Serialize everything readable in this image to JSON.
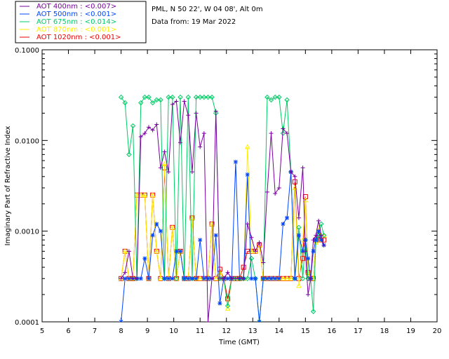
{
  "header": {
    "site": "PML, N 50 22', W 04 08', Alt 0m",
    "date": "Data from: 19 Mar 2022"
  },
  "chart_data": {
    "type": "line",
    "xlabel": "Time (GMT)",
    "ylabel": "Imaginary Part of Refractive Index",
    "xlim": [
      5,
      20
    ],
    "ylim": [
      0.0001,
      0.1
    ],
    "yscale": "log",
    "x_ticks": [
      "5",
      "6",
      "7",
      "8",
      "9",
      "10",
      "11",
      "12",
      "13",
      "14",
      "15",
      "16",
      "17",
      "18",
      "19",
      "20"
    ],
    "y_ticks": [
      "0.0001",
      "0.0010",
      "0.0100",
      "0.1000"
    ],
    "legend_position": "top-left, outside plot",
    "series": [
      {
        "name": "AOT  400nm : <0.007>",
        "color": "#7a00a0",
        "marker": "plus",
        "x": [
          8.0,
          8.15,
          8.3,
          8.45,
          8.6,
          8.75,
          8.9,
          9.05,
          9.2,
          9.35,
          9.5,
          9.65,
          9.8,
          9.95,
          10.1,
          10.25,
          10.4,
          10.55,
          10.7,
          10.85,
          11.0,
          11.15,
          11.3,
          11.45,
          11.6,
          11.75,
          11.9,
          12.05,
          12.2,
          12.35,
          12.5,
          12.65,
          12.8,
          12.95,
          13.1,
          13.25,
          13.4,
          13.55,
          13.7,
          13.85,
          14.0,
          14.15,
          14.3,
          14.45,
          14.6,
          14.75,
          14.9,
          15.0,
          15.1,
          15.2,
          15.3,
          15.4,
          15.5,
          15.6,
          15.7
        ],
        "y": [
          0.0003,
          0.00035,
          0.0006,
          0.0003,
          0.0003,
          0.011,
          0.012,
          0.014,
          0.013,
          0.015,
          0.005,
          0.0075,
          0.0045,
          0.025,
          0.027,
          0.0095,
          0.027,
          0.019,
          0.0045,
          0.02,
          0.0085,
          0.012,
          0.0001,
          0.0003,
          0.021,
          0.0003,
          0.0003,
          0.00035,
          0.0003,
          0.0003,
          0.0003,
          0.0003,
          0.0012,
          0.00085,
          0.0006,
          0.00075,
          0.00045,
          0.0027,
          0.012,
          0.0026,
          0.003,
          0.0135,
          0.012,
          0.0045,
          0.004,
          0.0014,
          0.005,
          0.0006,
          0.0002,
          0.0003,
          0.0008,
          0.0009,
          0.0013,
          0.0009,
          0.0007
        ]
      },
      {
        "name": "AOT  500nm : <0.001>",
        "color": "#0044ff",
        "marker": "asterisk",
        "x": [
          8.0,
          8.15,
          8.3,
          8.45,
          8.6,
          8.75,
          8.9,
          9.05,
          9.2,
          9.35,
          9.5,
          9.65,
          9.8,
          9.95,
          10.1,
          10.25,
          10.4,
          10.55,
          10.7,
          10.85,
          11.0,
          11.15,
          11.3,
          11.45,
          11.6,
          11.75,
          11.9,
          12.05,
          12.2,
          12.35,
          12.5,
          12.65,
          12.8,
          12.95,
          13.1,
          13.25,
          13.4,
          13.55,
          13.7,
          13.85,
          14.0,
          14.15,
          14.3,
          14.45,
          14.6,
          14.75,
          14.9,
          15.0,
          15.1,
          15.2,
          15.3,
          15.4,
          15.5,
          15.6,
          15.7
        ],
        "y": [
          0.0001,
          0.0003,
          0.0003,
          0.0003,
          0.0003,
          0.0003,
          0.0005,
          0.0003,
          0.0009,
          0.0012,
          0.001,
          0.0003,
          0.0003,
          0.0003,
          0.0006,
          0.0006,
          0.0003,
          0.0003,
          0.0003,
          0.0003,
          0.0008,
          0.0003,
          0.0003,
          0.0003,
          0.0009,
          0.00016,
          0.0003,
          0.0003,
          0.0003,
          0.0058,
          0.0003,
          0.0003,
          0.0042,
          0.0003,
          0.0003,
          0.0001,
          0.0003,
          0.0003,
          0.0003,
          0.0003,
          0.0003,
          0.0012,
          0.0014,
          0.0045,
          0.0003,
          0.0009,
          0.0006,
          0.0008,
          0.0005,
          0.0003,
          0.0006,
          0.0008,
          0.001,
          0.0008,
          0.0007
        ]
      },
      {
        "name": "AOT  675nm : <0.014>",
        "color": "#00cc66",
        "marker": "diamond",
        "x": [
          8.0,
          8.15,
          8.3,
          8.45,
          8.6,
          8.75,
          8.9,
          9.05,
          9.2,
          9.35,
          9.5,
          9.65,
          9.8,
          9.95,
          10.1,
          10.25,
          10.4,
          10.55,
          10.7,
          10.85,
          11.0,
          11.15,
          11.3,
          11.45,
          11.6,
          11.75,
          11.9,
          12.05,
          12.2,
          12.35,
          12.5,
          12.65,
          12.8,
          12.95,
          13.1,
          13.25,
          13.4,
          13.55,
          13.7,
          13.85,
          14.0,
          14.15,
          14.3,
          14.45,
          14.6,
          14.75,
          14.9,
          15.0,
          15.1,
          15.2,
          15.3,
          15.4,
          15.5,
          15.6,
          15.7
        ],
        "y": [
          0.03,
          0.026,
          0.007,
          0.0145,
          0.0003,
          0.026,
          0.03,
          0.03,
          0.026,
          0.028,
          0.028,
          0.0003,
          0.03,
          0.03,
          0.0003,
          0.03,
          0.0003,
          0.03,
          0.0003,
          0.03,
          0.03,
          0.03,
          0.03,
          0.03,
          0.02,
          0.0003,
          0.0003,
          0.00015,
          0.0003,
          0.0003,
          0.0003,
          0.0003,
          0.0003,
          0.0005,
          0.0003,
          0.0001,
          0.0003,
          0.03,
          0.028,
          0.03,
          0.03,
          0.012,
          0.028,
          0.0045,
          0.0003,
          0.0011,
          0.0003,
          0.0008,
          0.0003,
          0.0003,
          0.00013,
          0.0008,
          0.0009,
          0.0012,
          0.0009
        ]
      },
      {
        "name": "AOT  870nm : <0.001>",
        "color": "#ffee00",
        "marker": "triangle",
        "x": [
          8.0,
          8.15,
          8.3,
          8.45,
          8.6,
          8.75,
          8.9,
          9.05,
          9.2,
          9.35,
          9.5,
          9.65,
          9.8,
          9.95,
          10.1,
          10.25,
          10.4,
          10.55,
          10.7,
          10.85,
          11.0,
          11.15,
          11.3,
          11.45,
          11.6,
          11.75,
          11.9,
          12.05,
          12.2,
          12.35,
          12.5,
          12.65,
          12.8,
          12.95,
          13.1,
          13.25,
          13.4,
          13.55,
          13.7,
          13.85,
          14.0,
          14.15,
          14.3,
          14.45,
          14.6,
          14.75,
          14.9,
          15.0,
          15.1,
          15.2,
          15.3,
          15.4,
          15.5,
          15.6,
          15.7
        ],
        "y": [
          0.0003,
          0.0006,
          0.0003,
          0.0003,
          0.0025,
          0.0025,
          0.0025,
          0.0003,
          0.0025,
          0.0006,
          0.0003,
          0.0055,
          0.0003,
          0.0011,
          0.0003,
          0.0006,
          0.0003,
          0.0003,
          0.0014,
          0.0003,
          0.0003,
          0.0003,
          0.0003,
          0.0012,
          0.0003,
          0.00035,
          0.0003,
          0.00014,
          0.0003,
          0.0003,
          0.0003,
          0.0003,
          0.0085,
          0.0006,
          0.0006,
          0.0007,
          0.0003,
          0.0003,
          0.0003,
          0.0003,
          0.0003,
          0.0003,
          0.0003,
          0.0003,
          0.003,
          0.00025,
          0.0008,
          0.0022,
          0.00035,
          0.0003,
          0.0003,
          0.00075,
          0.0011,
          0.0008,
          0.0009
        ]
      },
      {
        "name": "AOT 1020nm : <0.001>",
        "color": "#ee0000",
        "marker": "square",
        "x": [
          8.0,
          8.15,
          8.3,
          8.45,
          8.6,
          8.75,
          8.9,
          9.05,
          9.2,
          9.35,
          9.5,
          9.65,
          9.8,
          9.95,
          10.1,
          10.25,
          10.4,
          10.55,
          10.7,
          10.85,
          11.0,
          11.15,
          11.3,
          11.45,
          11.6,
          11.75,
          11.9,
          12.05,
          12.2,
          12.35,
          12.5,
          12.65,
          12.8,
          12.95,
          13.1,
          13.25,
          13.4,
          13.55,
          13.7,
          13.85,
          14.0,
          14.15,
          14.3,
          14.45,
          14.6,
          14.75,
          14.9,
          15.0,
          15.1,
          15.2,
          15.3,
          15.4,
          15.5,
          15.6,
          15.7
        ],
        "y": [
          0.0003,
          0.0006,
          0.0003,
          0.0003,
          0.0025,
          0.0025,
          0.0025,
          0.0003,
          0.0025,
          0.0006,
          0.0003,
          0.005,
          0.0003,
          0.0011,
          0.0003,
          0.0006,
          0.0003,
          0.0003,
          0.0014,
          0.0003,
          0.0003,
          0.0003,
          0.0003,
          0.0012,
          0.0003,
          0.00038,
          0.0003,
          0.00018,
          0.0003,
          0.0003,
          0.0003,
          0.0004,
          0.0006,
          0.0006,
          0.0006,
          0.0007,
          0.0003,
          0.0003,
          0.0003,
          0.0003,
          0.0003,
          0.0003,
          0.0003,
          0.0003,
          0.0035,
          0.0003,
          0.0005,
          0.0024,
          0.00035,
          0.0003,
          0.0003,
          0.0008,
          0.0009,
          0.0008,
          0.0008
        ]
      }
    ]
  }
}
